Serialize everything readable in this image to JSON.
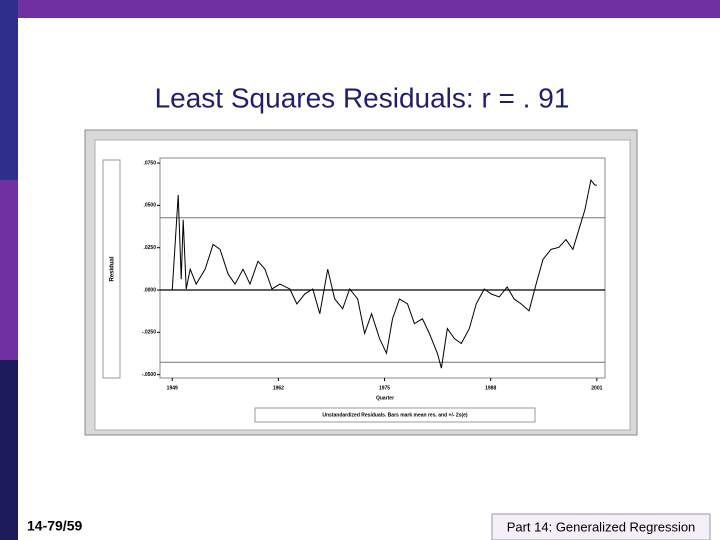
{
  "slide": {
    "title": "Least Squares Residuals: r = . 91",
    "page_number": "14-79/59",
    "footer": "Part 14: Generalized Regression"
  },
  "chart_data": {
    "type": "line",
    "ylabel": "Residual",
    "xlabel": "Quarter",
    "caption": "Unstandardized Residuals. Bars mark mean res. and +/- 2s(e)",
    "color": "#000000",
    "x": [
      1949.0,
      1949.73,
      1950.1,
      1950.34,
      1950.71,
      1951.2,
      1951.93,
      1953.03,
      1954.0,
      1954.86,
      1955.84,
      1956.69,
      1957.67,
      1958.52,
      1959.5,
      1960.35,
      1961.21,
      1962.18,
      1963.4,
      1964.26,
      1965.24,
      1966.21,
      1967.07,
      1968.04,
      1968.9,
      1969.87,
      1970.73,
      1971.71,
      1972.56,
      1973.41,
      1974.39,
      1975.24,
      1975.98,
      1976.83,
      1977.81,
      1978.66,
      1979.64,
      1980.49,
      1981.47,
      1981.96,
      1982.69,
      1983.55,
      1984.4,
      1985.38,
      1986.23,
      1987.21,
      1988.06,
      1989.04,
      1990.02,
      1990.87,
      1991.72,
      1992.7,
      1993.56,
      1994.41,
      1995.39,
      1996.36,
      1997.22,
      1998.07,
      1998.8,
      1999.54,
      2000.27,
      2000.76,
      2001.0
    ],
    "values": [
      0,
      0.0562,
      0.0064,
      0.0415,
      0.0006,
      0.0123,
      0.0035,
      0.0123,
      0.0269,
      0.024,
      0.0094,
      0.0035,
      0.0123,
      0.0035,
      0.017,
      0.0123,
      0.0006,
      0.0035,
      0.0006,
      -0.0082,
      -0.0023,
      0.0006,
      -0.014,
      0.0123,
      -0.0053,
      -0.0111,
      0.0006,
      -0.0053,
      -0.0257,
      -0.014,
      -0.0287,
      -0.0374,
      -0.017,
      -0.0053,
      -0.0082,
      -0.0199,
      -0.017,
      -0.0257,
      -0.0374,
      -0.0462,
      -0.0228,
      -0.0287,
      -0.0316,
      -0.0228,
      -0.0082,
      0.0006,
      -0.0023,
      -0.0041,
      0.0018,
      -0.0053,
      -0.0082,
      -0.0123,
      0.0035,
      0.0181,
      0.024,
      0.0252,
      0.0298,
      0.024,
      0.0357,
      0.0474,
      0.0649,
      0.062,
      0.062
    ],
    "hlines": [
      0.0427,
      0,
      -0.0427
    ],
    "xlim": [
      1947.5,
      2002
    ],
    "xticks": [
      1949,
      1962,
      1975,
      1988,
      2001
    ],
    "ylim": [
      -0.052,
      0.078
    ],
    "yticks": [
      {
        "value": 0.075,
        "label": ".0750"
      },
      {
        "value": 0.05,
        "label": ".0500"
      },
      {
        "value": 0.025,
        "label": ".0250"
      },
      {
        "value": 0,
        "label": ".0000"
      },
      {
        "value": -0.025,
        "label": "-.0250"
      },
      {
        "value": -0.05,
        "label": "-.0500"
      }
    ]
  }
}
